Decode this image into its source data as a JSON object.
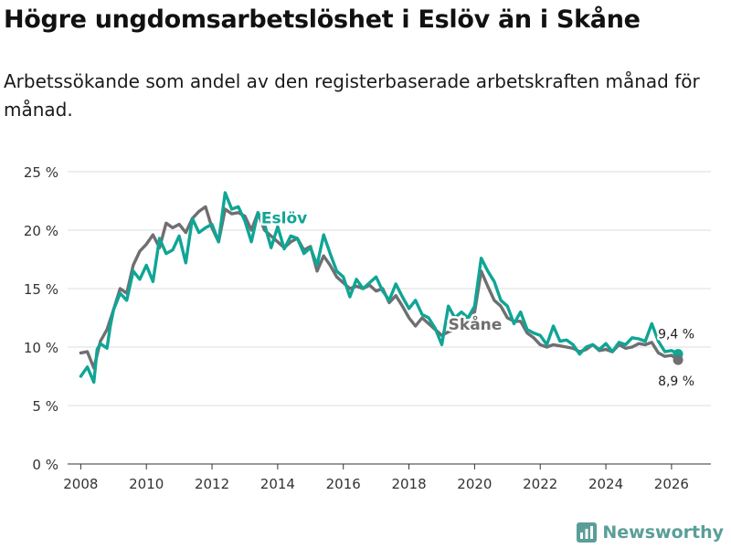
{
  "header": {
    "title": "Högre ungdomsarbetslöshet i Eslöv än i Skåne",
    "subtitle": "Arbetssökande som andel av den registerbaserade arbetskraften månad för månad."
  },
  "brand": {
    "name": "Newsworthy",
    "icon": "newsworthy-chart-icon"
  },
  "colors": {
    "eslov": "#10a595",
    "skane": "#6f6f72",
    "grid": "#dddddd",
    "axis": "#333333"
  },
  "chart_data": {
    "type": "line",
    "title": "Högre ungdomsarbetslöshet i Eslöv än i Skåne",
    "subtitle": "Arbetssökande som andel av den registerbaserade arbetskraften månad för månad.",
    "xlabel": "",
    "ylabel": "",
    "xlim": [
      2007.6,
      2027.2
    ],
    "ylim": [
      0,
      25
    ],
    "grid": true,
    "x_ticks": [
      2008,
      2010,
      2012,
      2014,
      2016,
      2018,
      2020,
      2022,
      2024,
      2026
    ],
    "x_tick_labels": [
      "2008",
      "2010",
      "2012",
      "2014",
      "2016",
      "2018",
      "2020",
      "2022",
      "2024",
      "2026"
    ],
    "y_ticks": [
      0,
      5,
      10,
      15,
      20,
      25
    ],
    "y_tick_labels": [
      "0 %",
      "5 %",
      "10 %",
      "15 %",
      "20 %",
      "25 %"
    ],
    "series": [
      {
        "name": "Eslöv",
        "color": "#10a595",
        "label": "Eslöv",
        "end_label": "9,4 %",
        "x": [
          2008.0,
          2008.2,
          2008.4,
          2008.5,
          2008.6,
          2008.8,
          2008.9,
          2009.0,
          2009.2,
          2009.4,
          2009.6,
          2009.8,
          2010.0,
          2010.2,
          2010.4,
          2010.6,
          2010.8,
          2011.0,
          2011.2,
          2011.4,
          2011.6,
          2011.8,
          2012.0,
          2012.2,
          2012.4,
          2012.6,
          2012.8,
          2013.0,
          2013.2,
          2013.4,
          2013.6,
          2013.8,
          2014.0,
          2014.2,
          2014.4,
          2014.6,
          2014.8,
          2015.0,
          2015.2,
          2015.4,
          2015.6,
          2015.8,
          2016.0,
          2016.2,
          2016.4,
          2016.6,
          2016.8,
          2017.0,
          2017.2,
          2017.4,
          2017.6,
          2017.8,
          2018.0,
          2018.2,
          2018.4,
          2018.6,
          2018.8,
          2019.0,
          2019.2,
          2019.4,
          2019.6,
          2019.8,
          2020.0,
          2020.2,
          2020.4,
          2020.6,
          2020.8,
          2021.0,
          2021.2,
          2021.4,
          2021.6,
          2021.8,
          2022.0,
          2022.2,
          2022.4,
          2022.6,
          2022.8,
          2023.0,
          2023.2,
          2023.4,
          2023.6,
          2023.8,
          2024.0,
          2024.2,
          2024.4,
          2024.6,
          2024.8,
          2025.0,
          2025.2,
          2025.4,
          2025.6,
          2025.8,
          2026.0,
          2026.2
        ],
        "values": [
          7.5,
          8.3,
          7.0,
          9.8,
          10.3,
          9.9,
          11.8,
          13.2,
          14.6,
          14.0,
          16.5,
          15.8,
          17.0,
          15.6,
          19.3,
          18.0,
          18.3,
          19.5,
          17.2,
          21.0,
          19.8,
          20.2,
          20.5,
          19.0,
          23.2,
          21.8,
          22.0,
          20.8,
          19.0,
          21.5,
          20.5,
          18.5,
          20.3,
          18.4,
          19.5,
          19.3,
          18.0,
          18.5,
          17.0,
          19.6,
          18.0,
          16.5,
          16.0,
          14.3,
          15.8,
          15.0,
          15.5,
          16.0,
          14.8,
          14.0,
          15.4,
          14.3,
          13.3,
          14.0,
          12.8,
          12.5,
          11.6,
          10.2,
          13.5,
          12.5,
          13.0,
          12.5,
          13.5,
          17.6,
          16.5,
          15.6,
          14.0,
          13.5,
          12.0,
          13.0,
          11.5,
          11.2,
          11.0,
          10.2,
          11.8,
          10.5,
          10.6,
          10.2,
          9.4,
          10.0,
          10.2,
          9.8,
          10.3,
          9.6,
          10.4,
          10.2,
          10.8,
          10.7,
          10.5,
          12.0,
          10.5,
          9.6,
          9.7,
          9.4
        ]
      },
      {
        "name": "Skåne",
        "color": "#6f6f72",
        "label": "Skåne",
        "end_label": "8,9 %",
        "x": [
          2008.0,
          2008.2,
          2008.4,
          2008.6,
          2008.8,
          2009.0,
          2009.2,
          2009.4,
          2009.6,
          2009.8,
          2010.0,
          2010.2,
          2010.4,
          2010.6,
          2010.8,
          2011.0,
          2011.2,
          2011.4,
          2011.6,
          2011.8,
          2012.0,
          2012.2,
          2012.4,
          2012.6,
          2012.8,
          2013.0,
          2013.2,
          2013.4,
          2013.6,
          2013.8,
          2014.0,
          2014.2,
          2014.4,
          2014.6,
          2014.8,
          2015.0,
          2015.2,
          2015.4,
          2015.6,
          2015.8,
          2016.0,
          2016.2,
          2016.4,
          2016.6,
          2016.8,
          2017.0,
          2017.2,
          2017.4,
          2017.6,
          2017.8,
          2018.0,
          2018.2,
          2018.4,
          2018.6,
          2018.8,
          2019.0,
          2019.2,
          2019.4,
          2019.6,
          2019.8,
          2020.0,
          2020.2,
          2020.4,
          2020.6,
          2020.8,
          2021.0,
          2021.2,
          2021.4,
          2021.6,
          2021.8,
          2022.0,
          2022.2,
          2022.4,
          2022.6,
          2022.8,
          2023.0,
          2023.2,
          2023.4,
          2023.6,
          2023.8,
          2024.0,
          2024.2,
          2024.4,
          2024.6,
          2024.8,
          2025.0,
          2025.2,
          2025.4,
          2025.6,
          2025.8,
          2026.0,
          2026.2
        ],
        "values": [
          9.5,
          9.6,
          8.2,
          10.5,
          11.5,
          13.2,
          15.0,
          14.6,
          17.0,
          18.2,
          18.8,
          19.6,
          18.5,
          20.6,
          20.2,
          20.5,
          19.8,
          21.0,
          21.6,
          22.0,
          20.2,
          19.0,
          21.8,
          21.4,
          21.5,
          21.2,
          20.0,
          21.5,
          20.0,
          19.5,
          19.0,
          18.5,
          19.0,
          19.3,
          18.3,
          18.6,
          16.5,
          17.8,
          17.0,
          16.0,
          15.5,
          15.0,
          15.2,
          15.0,
          15.3,
          14.8,
          15.0,
          13.8,
          14.4,
          13.5,
          12.5,
          11.8,
          12.5,
          12.0,
          11.5,
          11.0,
          11.3,
          11.5,
          12.0,
          12.5,
          13.0,
          16.5,
          15.2,
          14.0,
          13.5,
          12.5,
          12.2,
          12.2,
          11.2,
          10.8,
          10.2,
          10.0,
          10.2,
          10.1,
          10.0,
          9.9,
          9.6,
          9.8,
          10.2,
          9.7,
          9.8,
          9.6,
          10.2,
          9.9,
          10.0,
          10.3,
          10.2,
          10.4,
          9.5,
          9.2,
          9.3,
          8.9
        ]
      }
    ]
  }
}
